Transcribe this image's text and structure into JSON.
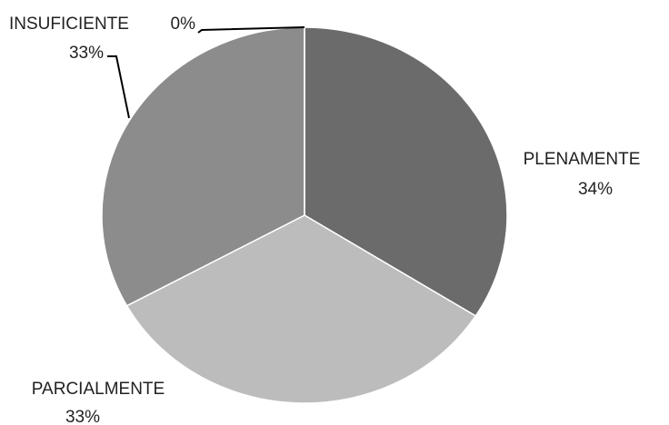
{
  "chart_data": {
    "type": "pie",
    "categories": [
      "PLENAMENTE",
      "PARCIALMENTE",
      null,
      "INSUFICIENTE"
    ],
    "values": [
      34,
      33,
      33,
      0
    ],
    "value_labels": [
      "34%",
      "33%",
      "33%",
      "0%"
    ],
    "colors": [
      "#6b6b6b",
      "#bcbcbc",
      "#8c8c8c",
      "#a0a0a0"
    ]
  }
}
